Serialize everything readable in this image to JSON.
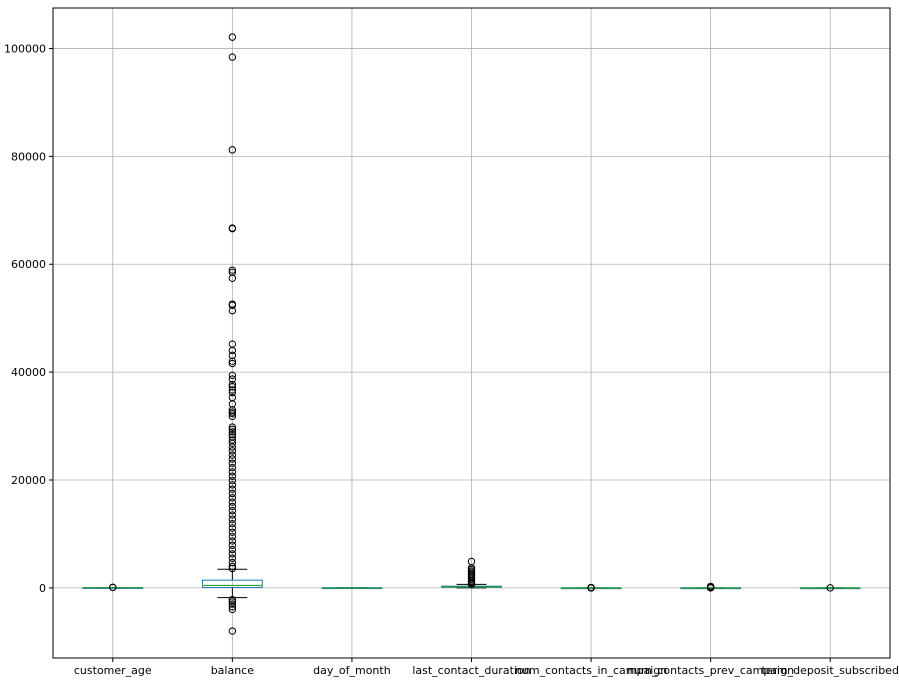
{
  "chart_data": {
    "type": "box",
    "title": "",
    "xlabel": "",
    "ylabel": "",
    "grid": true,
    "ylim": [
      -13000,
      107500
    ],
    "yticks": [
      0,
      20000,
      40000,
      60000,
      80000,
      100000
    ],
    "ytick_labels": [
      "0",
      "20000",
      "40000",
      "60000",
      "80000",
      "100000"
    ],
    "categories": [
      "customer_age",
      "balance",
      "day_of_month",
      "last_contact_duration",
      "num_contacts_in_campaign",
      "num_contacts_prev_campaign",
      "term_deposit_subscribed"
    ],
    "boxes": [
      {
        "q1": 33,
        "median": 39,
        "q3": 48,
        "whislo": 18,
        "whishi": 70,
        "fliers": [
          80,
          95
        ]
      },
      {
        "q1": 72,
        "median": 449,
        "q3": 1428,
        "whislo": -1800,
        "whishi": 3450,
        "fliers": [
          102100,
          98400,
          81200,
          66700,
          66600,
          58900,
          58500,
          57400,
          52600,
          52400,
          51400,
          45200,
          44000,
          43100,
          42000,
          41600,
          39400,
          38700,
          37700,
          37300,
          36700,
          36200,
          35300,
          34100,
          33000,
          32600,
          32300,
          31800,
          29800,
          29400,
          28900,
          28400,
          28000,
          27400,
          26800,
          26100,
          25400,
          24600,
          23900,
          23100,
          22300,
          21500,
          20700,
          19900,
          19100,
          18300,
          17500,
          16700,
          15900,
          15100,
          14300,
          13500,
          12700,
          11900,
          11100,
          10300,
          9500,
          8700,
          7900,
          7100,
          6300,
          5500,
          4700,
          4000,
          3600,
          -2200,
          -2600,
          -3000,
          -3500,
          -4000,
          -8000
        ]
      },
      {
        "q1": 8,
        "median": 16,
        "q3": 21,
        "whislo": 1,
        "whishi": 31,
        "fliers": []
      },
      {
        "q1": 103,
        "median": 180,
        "q3": 319,
        "whislo": 0,
        "whishi": 643,
        "fliers": [
          4900,
          3700,
          3400,
          3100,
          2800,
          2500,
          2200,
          1900,
          1600,
          1300,
          1000,
          800,
          700
        ]
      },
      {
        "q1": 1,
        "median": 2,
        "q3": 3,
        "whislo": 1,
        "whishi": 6,
        "fliers": [
          8,
          20,
          40,
          63
        ]
      },
      {
        "q1": 0,
        "median": 0,
        "q3": 0,
        "whislo": 0,
        "whishi": 0,
        "fliers": [
          1,
          50,
          120,
          275
        ]
      },
      {
        "q1": 0,
        "median": 0,
        "q3": 0,
        "whislo": 0,
        "whishi": 0,
        "fliers": [
          1
        ]
      }
    ]
  }
}
